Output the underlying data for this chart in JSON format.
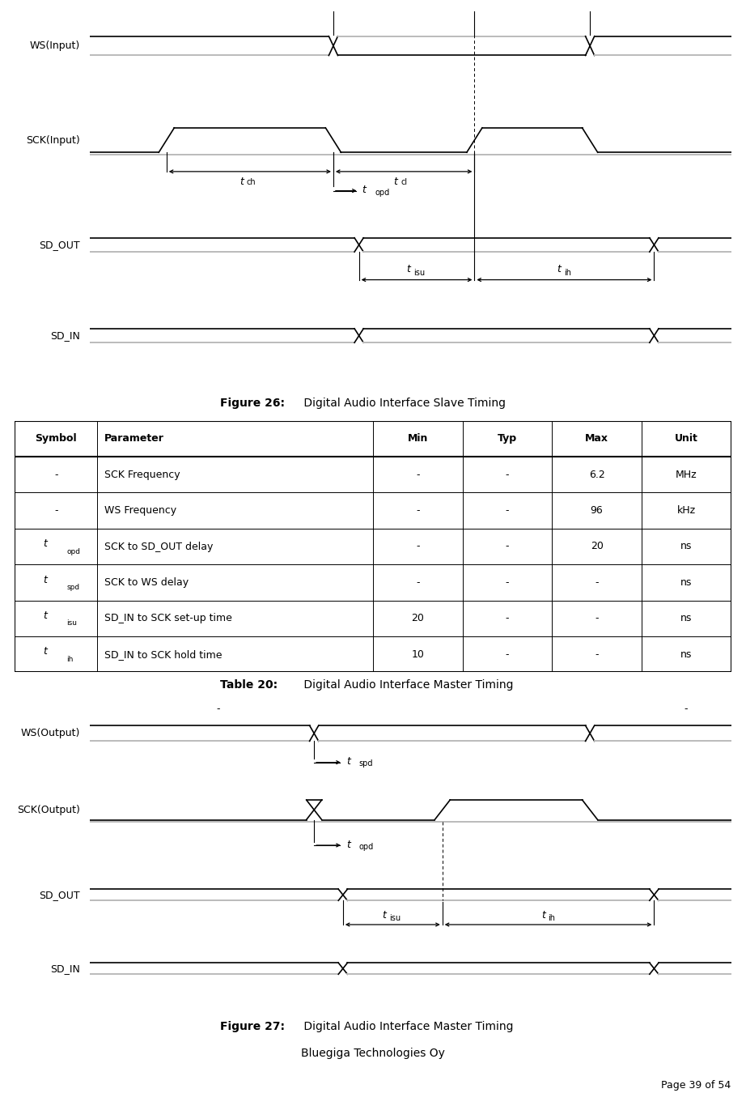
{
  "bg_color": "#ffffff",
  "line_color": "#000000",
  "gray_color": "#bbbbbb",
  "figure26_caption": "Figure 26:",
  "figure26_text": "Digital Audio Interface Slave Timing",
  "figure27_caption": "Figure 27:",
  "figure27_text": "Digital Audio Interface Master Timing",
  "table20_caption": "Table 20:",
  "table20_text": "Digital Audio Interface Master Timing",
  "table_headers": [
    "Symbol",
    "Parameter",
    "Min",
    "Typ",
    "Max",
    "Unit"
  ],
  "table_rows": [
    [
      "-",
      "SCK Frequency",
      "-",
      "-",
      "6.2",
      "MHz"
    ],
    [
      "-",
      "WS Frequency",
      "-",
      "-",
      "96",
      "kHz"
    ],
    [
      "t_opd",
      "SCK to SD_OUT delay",
      "-",
      "-",
      "20",
      "ns"
    ],
    [
      "t_spd",
      "SCK to WS delay",
      "-",
      "-",
      "-",
      "ns"
    ],
    [
      "t_isu",
      "SD_IN to SCK set-up time",
      "20",
      "-",
      "-",
      "ns"
    ],
    [
      "t_ih",
      "SD_IN to SCK hold time",
      "10",
      "-",
      "-",
      "ns"
    ]
  ]
}
